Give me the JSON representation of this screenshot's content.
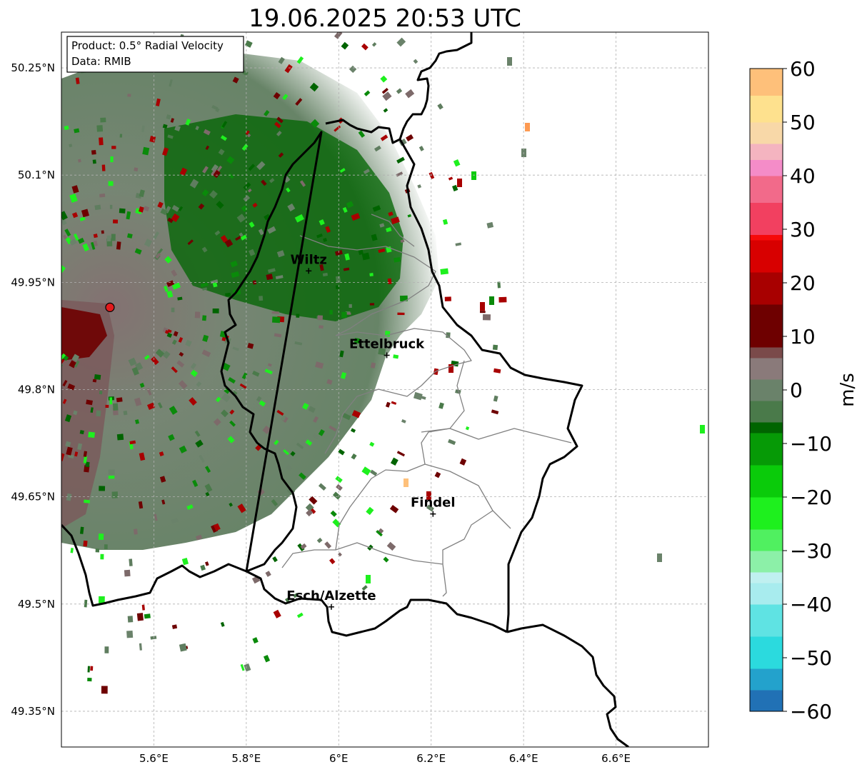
{
  "title": "19.06.2025 20:53 UTC",
  "info_box": {
    "product": "Product: 0.5° Radial Velocity",
    "data": "Data: RMIB"
  },
  "map": {
    "lon_range": [
      5.4,
      6.8
    ],
    "lat_range": [
      49.3,
      50.3
    ],
    "lat_ticks": [
      {
        "value": 50.25,
        "label": "50.25°N"
      },
      {
        "value": 50.1,
        "label": "50.1°N"
      },
      {
        "value": 49.95,
        "label": "49.95°N"
      },
      {
        "value": 49.8,
        "label": "49.8°N"
      },
      {
        "value": 49.65,
        "label": "49.65°N"
      },
      {
        "value": 49.5,
        "label": "49.5°N"
      },
      {
        "value": 49.35,
        "label": "49.35°N"
      }
    ],
    "lon_ticks": [
      {
        "value": 5.6,
        "label": "5.6°E"
      },
      {
        "value": 5.8,
        "label": "5.8°E"
      },
      {
        "value": 6.0,
        "label": "6°E"
      },
      {
        "value": 6.2,
        "label": "6.2°E"
      },
      {
        "value": 6.4,
        "label": "6.4°E"
      },
      {
        "value": 6.6,
        "label": "6.6°E"
      }
    ],
    "radar_site": {
      "lon": 5.505,
      "lat": 49.915,
      "color": "#e31a1c"
    },
    "cities": [
      {
        "name": "Wiltz",
        "lon": 5.935,
        "lat": 49.966
      },
      {
        "name": "Ettelbruck",
        "lon": 6.104,
        "lat": 49.848
      },
      {
        "name": "Findel",
        "lon": 6.204,
        "lat": 49.626
      },
      {
        "name": "Esch/Alzette",
        "lon": 5.984,
        "lat": 49.496
      }
    ]
  },
  "colorbar": {
    "label": "m/s",
    "min": -60,
    "max": 60,
    "ticks": [
      {
        "value": 60,
        "label": "60"
      },
      {
        "value": 50,
        "label": "50"
      },
      {
        "value": 40,
        "label": "40"
      },
      {
        "value": 30,
        "label": "30"
      },
      {
        "value": 20,
        "label": "20"
      },
      {
        "value": 10,
        "label": "10"
      },
      {
        "value": 0,
        "label": "0"
      },
      {
        "value": -10,
        "label": "−10"
      },
      {
        "value": -20,
        "label": "−20"
      },
      {
        "value": -30,
        "label": "−30"
      },
      {
        "value": -40,
        "label": "−40"
      },
      {
        "value": -50,
        "label": "−50"
      },
      {
        "value": -60,
        "label": "−60"
      }
    ],
    "color_stops": [
      {
        "value": -60,
        "color": "#2171b5"
      },
      {
        "value": -56,
        "color": "#23a2cc"
      },
      {
        "value": -52,
        "color": "#2bdade"
      },
      {
        "value": -46,
        "color": "#5fe3e3"
      },
      {
        "value": -40,
        "color": "#a8ecee"
      },
      {
        "value": -36,
        "color": "#c0f0f0"
      },
      {
        "value": -34,
        "color": "#8cf0a8"
      },
      {
        "value": -30,
        "color": "#50f060"
      },
      {
        "value": -26,
        "color": "#1ef01e"
      },
      {
        "value": -20,
        "color": "#0acb0a"
      },
      {
        "value": -14,
        "color": "#069a06"
      },
      {
        "value": -8,
        "color": "#006400"
      },
      {
        "value": -6,
        "color": "#4a7a4a"
      },
      {
        "value": -2,
        "color": "#6a826a"
      },
      {
        "value": 2,
        "color": "#8a7a7a"
      },
      {
        "value": 6,
        "color": "#7a4a4a"
      },
      {
        "value": 8,
        "color": "#6e0000"
      },
      {
        "value": 16,
        "color": "#a80000"
      },
      {
        "value": 22,
        "color": "#d80000"
      },
      {
        "value": 28,
        "color": "#f60a0a"
      },
      {
        "value": 29,
        "color": "#f24060"
      },
      {
        "value": 35,
        "color": "#f26a8a"
      },
      {
        "value": 40,
        "color": "#f48cc8"
      },
      {
        "value": 43,
        "color": "#f4b4c0"
      },
      {
        "value": 46,
        "color": "#f8d8a8"
      },
      {
        "value": 50,
        "color": "#fee18e"
      },
      {
        "value": 55,
        "color": "#fec07a"
      },
      {
        "value": 60,
        "color": "#fd9a52"
      }
    ]
  }
}
